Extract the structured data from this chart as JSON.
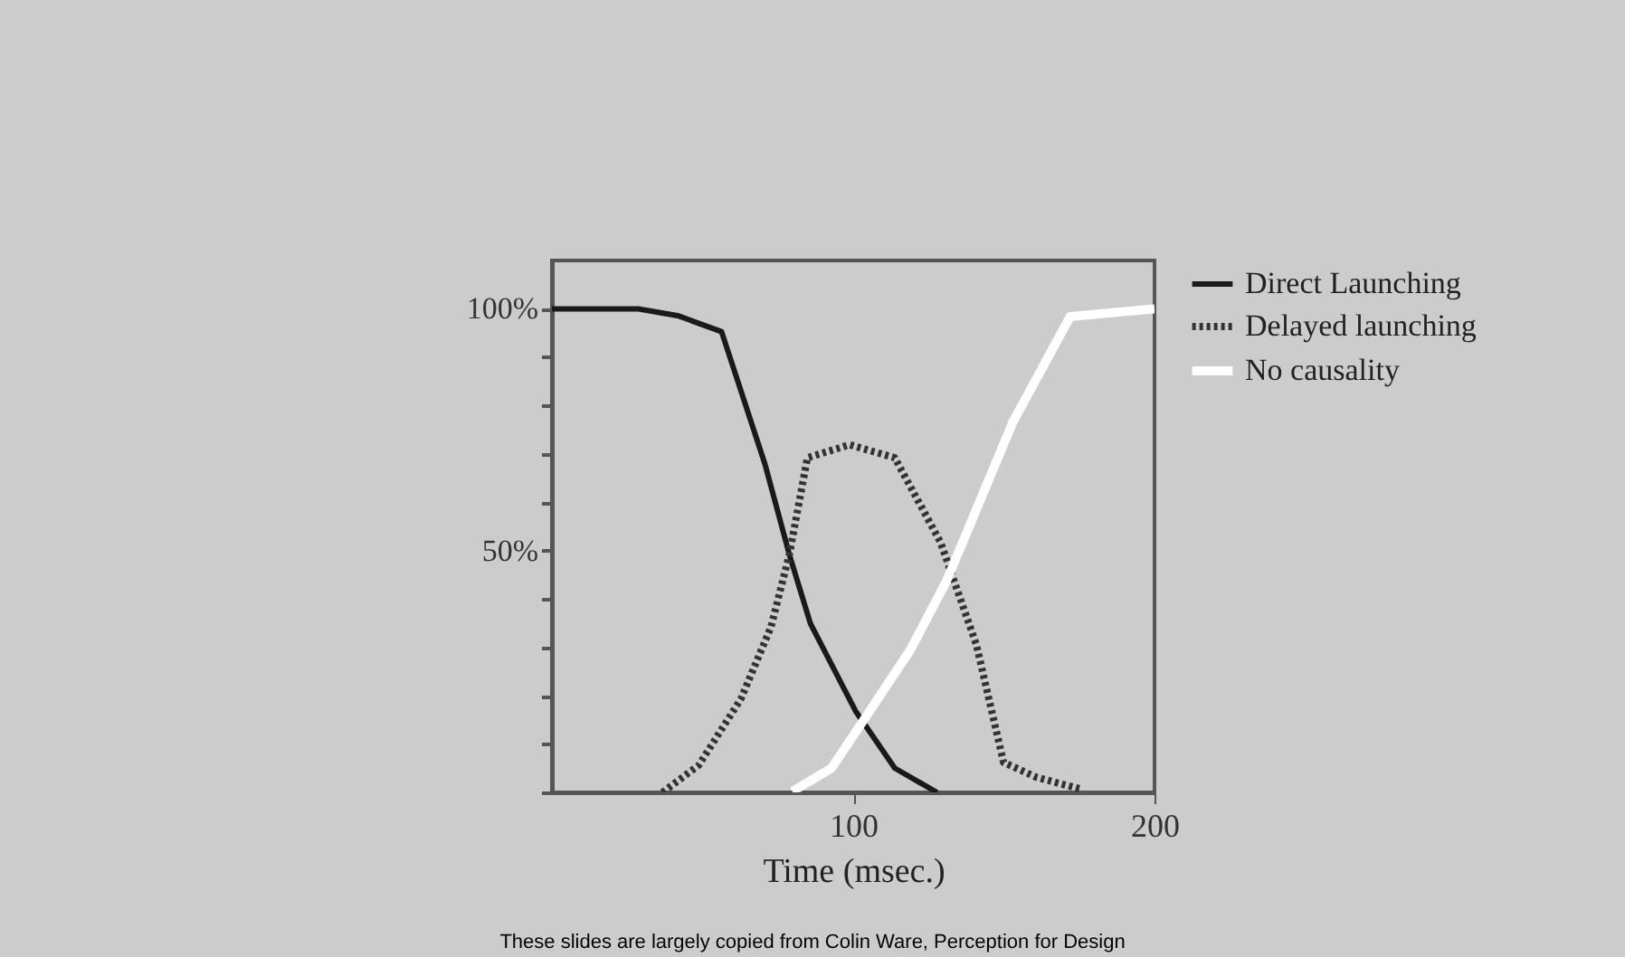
{
  "chart_data": {
    "type": "line",
    "xlabel": "Time (msec.)",
    "xlim": [
      0,
      200
    ],
    "xticks": [
      100,
      200
    ],
    "ylim": [
      0,
      110
    ],
    "yticks": [
      {
        "value": 0,
        "label": null
      },
      {
        "value": 10,
        "label": null
      },
      {
        "value": 20,
        "label": null
      },
      {
        "value": 30,
        "label": null
      },
      {
        "value": 40,
        "label": null
      },
      {
        "value": 50,
        "label": "50%"
      },
      {
        "value": 60,
        "label": null
      },
      {
        "value": 70,
        "label": null
      },
      {
        "value": 80,
        "label": null
      },
      {
        "value": 90,
        "label": null
      },
      {
        "value": 100,
        "label": "100%"
      }
    ],
    "grid": false,
    "legend": "right",
    "series": [
      {
        "name": "Direct Launching",
        "color": "#1a1a1a",
        "line_style": "solid",
        "x": [
          0,
          28.7,
          41.7,
          56.3,
          70.7,
          78.8,
          85.8,
          100.8,
          113.8,
          127.8
        ],
        "values": [
          100,
          100,
          98.6,
          95.3,
          67.9,
          49.2,
          34.9,
          16.8,
          5,
          0
        ]
      },
      {
        "name": "Delayed launching",
        "color": "#333333",
        "line_style": "dotted",
        "x": [
          36.7,
          48.7,
          62.7,
          72.7,
          78.8,
          84.8,
          98.8,
          113.8,
          129,
          140.9,
          149.9,
          160.9,
          176
        ],
        "values": [
          0,
          5.6,
          19.3,
          34.2,
          49.2,
          69.2,
          71.9,
          69.2,
          51.7,
          30.5,
          6.2,
          3.1,
          0.6
        ]
      },
      {
        "name": "No causality",
        "color": "#ffffff",
        "line_style": "solid",
        "x": [
          79.8,
          92.8,
          104.8,
          118.8,
          130.9,
          153,
          172,
          200
        ],
        "values": [
          0.2,
          5,
          16.2,
          29.3,
          43.6,
          76.6,
          98.4,
          100
        ]
      }
    ],
    "annotations": [
      "These slides are largely copied from Colin Ware, Perception for Design"
    ]
  }
}
